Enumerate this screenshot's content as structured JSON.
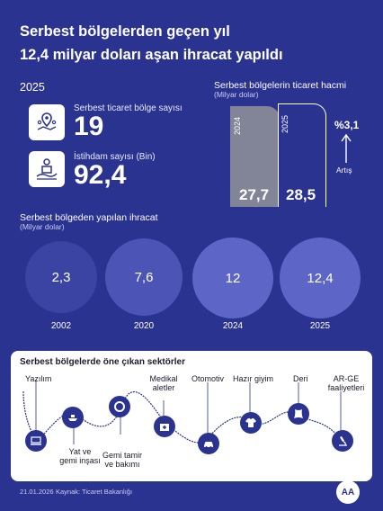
{
  "title_line1": "Serbest bölgelerden geçen yıl",
  "title_line2": "12,4 milyar doları aşan ihracat yapıldı",
  "year_label": "2025",
  "stats": [
    {
      "label": "Serbest ticaret bölge sayısı",
      "value": "19",
      "icon": "map-location-icon"
    },
    {
      "label": "İstihdam sayısı (Bin)",
      "value": "92,4",
      "icon": "worker-box-icon"
    }
  ],
  "volume": {
    "title": "Serbest bölgelerin ticaret hacmi",
    "subtitle": "(Milyar dolar)",
    "bars": [
      {
        "year": "2024",
        "value": "27,7"
      },
      {
        "year": "2025",
        "value": "28,5"
      }
    ],
    "change": "%3,1",
    "change_label": "Artış"
  },
  "exports": {
    "title": "Serbest bölgeden yapılan ihracat",
    "subtitle": "(Milyar dolar)",
    "items": [
      {
        "year": "2002",
        "value": "2,3"
      },
      {
        "year": "2020",
        "value": "7,6"
      },
      {
        "year": "2024",
        "value": "12"
      },
      {
        "year": "2025",
        "value": "12,4"
      }
    ]
  },
  "chart_data": {
    "type": "bar",
    "categories": [
      "2002",
      "2020",
      "2024",
      "2025"
    ],
    "values": [
      2.3,
      7.6,
      12,
      12.4
    ],
    "title": "Serbest bölgeden yapılan ihracat",
    "ylabel": "(Milyar dolar)"
  },
  "sectors": {
    "title": "Serbest bölgelerde öne çıkan sektörler",
    "items": [
      {
        "label": "Yazılım",
        "icon": "laptop-icon"
      },
      {
        "label": "Yat ve gemi inşası",
        "icon": "ship-icon"
      },
      {
        "label": "Gemi tamir ve bakımı",
        "icon": "lifebuoy-icon"
      },
      {
        "label": "Medikal aletler",
        "icon": "medical-kit-icon"
      },
      {
        "label": "Otomotiv",
        "icon": "car-icon"
      },
      {
        "label": "Hazır giyim",
        "icon": "shirt-icon"
      },
      {
        "label": "Deri",
        "icon": "leather-icon"
      },
      {
        "label": "AR-GE faaliyetleri",
        "icon": "microscope-icon"
      }
    ]
  },
  "footer": {
    "date": "21.01.2026",
    "source": "Kaynak: Ticaret Bakanlığı",
    "logo": "AA"
  },
  "colors": {
    "background": "#2b3390",
    "bar_2024": "#828597",
    "card": "#ffffff"
  }
}
